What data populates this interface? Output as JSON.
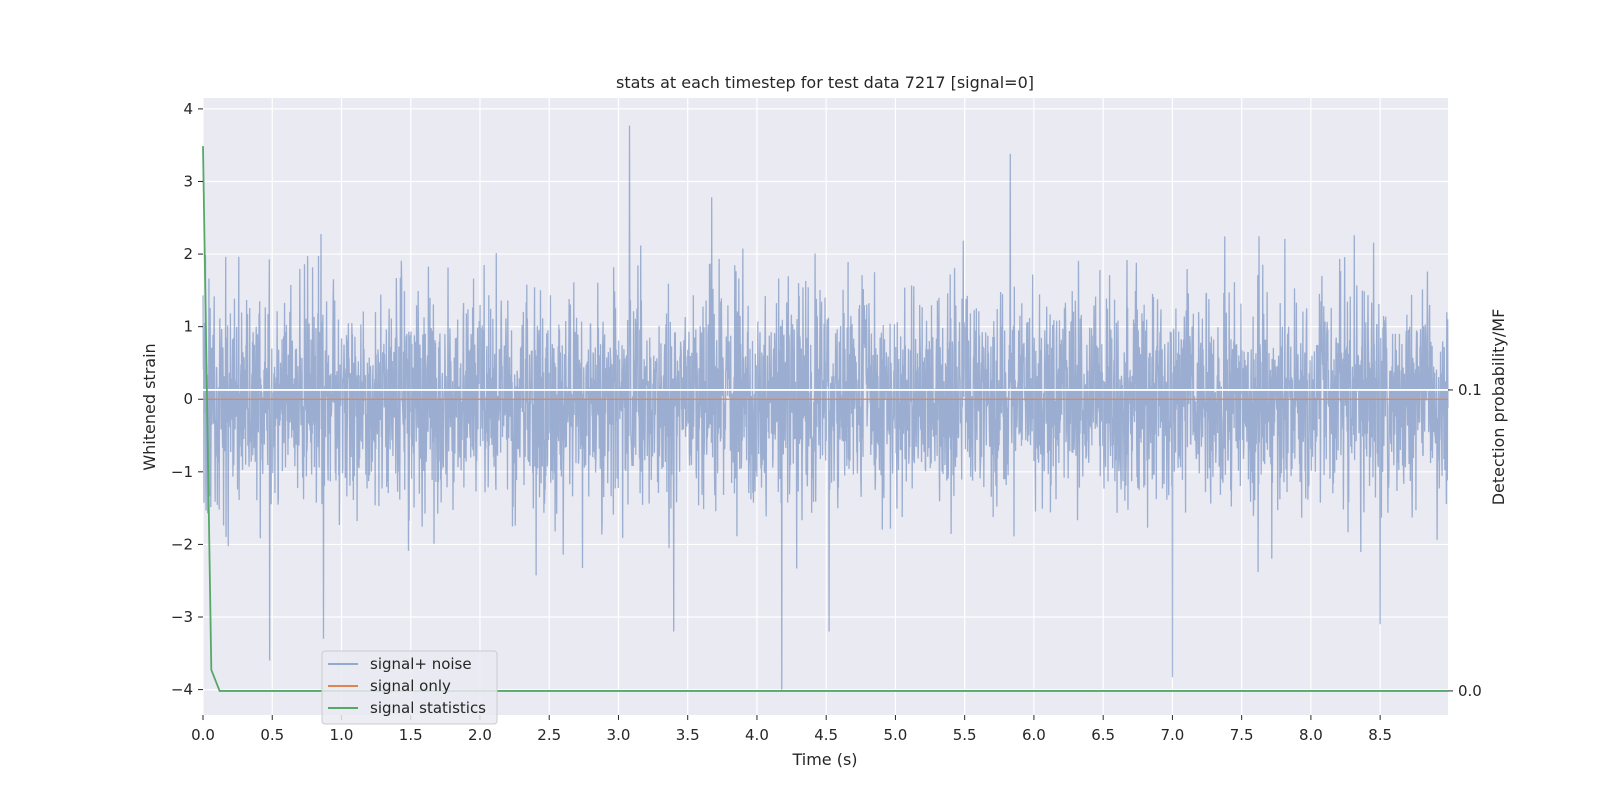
{
  "chart_data": {
    "type": "line",
    "title": "stats at each timestep for test data 7217 [signal=0]",
    "xlabel": "Time (s)",
    "ylabel": "Whitened strain",
    "y2label": "Detection probability/MF",
    "xlim": [
      0.0,
      8.99
    ],
    "ylim": [
      -4.35,
      4.15
    ],
    "y2lim": [
      -0.008,
      0.197
    ],
    "x_ticks": [
      "0.0",
      "0.5",
      "1.0",
      "1.5",
      "2.0",
      "2.5",
      "3.0",
      "3.5",
      "4.0",
      "4.5",
      "5.0",
      "5.5",
      "6.0",
      "6.5",
      "7.0",
      "7.5",
      "8.0",
      "8.5"
    ],
    "y_ticks": [
      "4",
      "3",
      "2",
      "1",
      "0",
      "−1",
      "−2",
      "−3",
      "−4"
    ],
    "y2_ticks": [
      "0.1",
      "0.0"
    ],
    "grid": true,
    "legend_position": "lower-left",
    "series": [
      {
        "name": "signal+ noise",
        "color": "#4c72b0",
        "opacity": 0.5,
        "description": "dense whitened noise, mean 0, std approx 0.7, duration 8.99 s",
        "peaks": [
          {
            "x": 0.48,
            "y": -3.6
          },
          {
            "x": 0.87,
            "y": -3.3
          },
          {
            "x": 3.08,
            "y": 3.77
          },
          {
            "x": 3.4,
            "y": -3.2
          },
          {
            "x": 4.18,
            "y": -4.0
          },
          {
            "x": 4.52,
            "y": -3.2
          },
          {
            "x": 5.83,
            "y": 3.38
          },
          {
            "x": 7.0,
            "y": -3.83
          },
          {
            "x": 8.5,
            "y": -3.1
          }
        ]
      },
      {
        "name": "signal only",
        "color": "#dd8452",
        "x": [
          0.0,
          8.99
        ],
        "y": [
          0.0,
          0.0
        ]
      },
      {
        "name": "signal statistics",
        "color": "#55a868",
        "axis": "right",
        "x": [
          0.0,
          0.06,
          0.12,
          8.99
        ],
        "y": [
          0.181,
          0.007,
          0.0,
          0.0
        ]
      }
    ],
    "reference_lines": [
      {
        "axis": "right",
        "y": 0.1,
        "color": "#ffffff"
      }
    ]
  }
}
